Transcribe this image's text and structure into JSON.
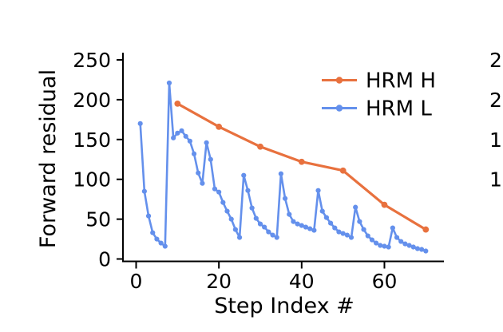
{
  "figure": {
    "background_color": "#ffffff",
    "text_color": "#000000"
  },
  "chart_data": {
    "type": "line",
    "title": "",
    "xlabel": "Step Index #",
    "ylabel": "Forward residual",
    "xticks": [
      0,
      20,
      40,
      60
    ],
    "yticks": [
      0,
      50,
      100,
      150,
      200,
      250
    ],
    "xlim": [
      -3.2,
      74.5
    ],
    "ylim": [
      -3.5,
      259
    ],
    "grid": false,
    "legend": {
      "position": "upper right",
      "frame": false
    },
    "series": [
      {
        "name": "HRM H",
        "color": "#E8713E",
        "marker": "circle",
        "x": [
          10,
          20,
          30,
          40,
          50,
          60,
          70
        ],
        "y": [
          195,
          166,
          141,
          122,
          111,
          68,
          37
        ]
      },
      {
        "name": "HRM L",
        "color": "#6490EC",
        "marker": "circle",
        "x": [
          1,
          2,
          3,
          4,
          5,
          6,
          7,
          8,
          9,
          10,
          11,
          12,
          13,
          14,
          15,
          16,
          17,
          18,
          19,
          20,
          21,
          22,
          23,
          24,
          25,
          26,
          27,
          28,
          29,
          30,
          31,
          32,
          33,
          34,
          35,
          36,
          37,
          38,
          39,
          40,
          41,
          42,
          43,
          44,
          45,
          46,
          47,
          48,
          49,
          50,
          51,
          52,
          53,
          54,
          55,
          56,
          57,
          58,
          59,
          60,
          61,
          62,
          63,
          64,
          65,
          66,
          67,
          68,
          69,
          70
        ],
        "y": [
          170,
          85,
          54,
          33,
          25,
          20,
          16,
          221,
          152,
          158,
          161,
          154,
          148,
          132,
          108,
          95,
          146,
          125,
          88,
          84,
          71,
          60,
          50,
          37,
          27,
          105,
          86,
          64,
          51,
          44,
          40,
          34,
          30,
          27,
          107,
          76,
          56,
          47,
          44,
          42,
          40,
          38,
          36,
          86,
          60,
          52,
          45,
          39,
          34,
          32,
          30,
          27,
          65,
          47,
          37,
          29,
          24,
          20,
          17,
          16,
          15,
          39,
          27,
          22,
          19,
          17,
          15,
          13,
          12,
          10
        ]
      }
    ],
    "adjacent_panel_partial_ytick_labels": [
      {
        "text": "2",
        "aligned_with_y": 250
      },
      {
        "text": "2",
        "aligned_with_y": 200
      },
      {
        "text": "1",
        "aligned_with_y": 150
      },
      {
        "text": "1",
        "aligned_with_y": 100
      }
    ]
  }
}
